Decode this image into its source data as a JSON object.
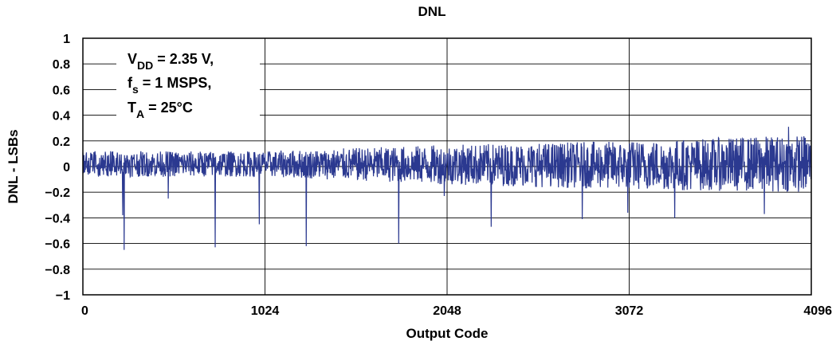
{
  "chart_data": {
    "type": "line",
    "title": "DNL",
    "xlabel": "Output Code",
    "ylabel": "DNL - LSBs",
    "xlim": [
      0,
      4096
    ],
    "ylim": [
      -1,
      1
    ],
    "xticks": [
      0,
      1024,
      2048,
      3072,
      4096
    ],
    "xtick_labels": [
      "0",
      "1024",
      "2048",
      "3072",
      "4096"
    ],
    "yticks": [
      1,
      0.8,
      0.6,
      0.4,
      0.2,
      0,
      -0.2,
      -0.4,
      -0.6,
      -0.8,
      -1
    ],
    "ytick_labels": [
      "1",
      "0.8",
      "0.6",
      "0.4",
      "0.2",
      "0",
      "−0.2",
      "−0.4",
      "−0.6",
      "−0.8",
      "−1"
    ],
    "grid": {
      "vertical_at_xticks": true,
      "horizontal_at_yticks": true
    },
    "series_color": "#2b3990",
    "annotation": {
      "line1": {
        "main": "V",
        "sub": "DD",
        "rest": " = 2.35 V,"
      },
      "line2": {
        "main": "f",
        "sub": "s",
        "rest": " = 1 MSPS,"
      },
      "line3": {
        "main": "T",
        "sub": "A",
        "rest": " = 25°C"
      },
      "placement": "top-left"
    },
    "noise_envelope": [
      {
        "x": 0,
        "upper": 0.12,
        "lower": -0.08
      },
      {
        "x": 1024,
        "upper": 0.12,
        "lower": -0.08
      },
      {
        "x": 2048,
        "upper": 0.17,
        "lower": -0.14
      },
      {
        "x": 3072,
        "upper": 0.2,
        "lower": -0.18
      },
      {
        "x": 4096,
        "upper": 0.25,
        "lower": -0.2
      }
    ],
    "spikes": [
      {
        "x": 224,
        "value": -0.38
      },
      {
        "x": 232,
        "value": -0.65
      },
      {
        "x": 480,
        "value": -0.25
      },
      {
        "x": 744,
        "value": -0.63
      },
      {
        "x": 992,
        "value": -0.45
      },
      {
        "x": 1256,
        "value": -0.62
      },
      {
        "x": 1776,
        "value": -0.6
      },
      {
        "x": 2032,
        "value": -0.23
      },
      {
        "x": 2296,
        "value": -0.47
      },
      {
        "x": 2808,
        "value": -0.41
      },
      {
        "x": 3064,
        "value": -0.36
      },
      {
        "x": 3328,
        "value": -0.4
      },
      {
        "x": 3832,
        "value": -0.37
      },
      {
        "x": 3968,
        "value": 0.31
      }
    ]
  }
}
